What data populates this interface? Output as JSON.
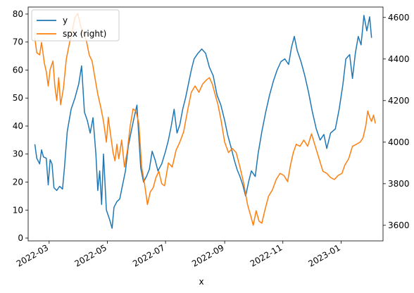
{
  "chart_data": {
    "type": "line",
    "xlabel": "x",
    "legend_position": "top-left",
    "x_ticks": [
      "2022-03",
      "2022-05",
      "2022-07",
      "2022-09",
      "2022-11",
      "2023-01"
    ],
    "x_range": [
      "2022-02-07",
      "2023-02-14"
    ],
    "y_left_ticks": [
      0,
      10,
      20,
      30,
      40,
      50,
      60,
      70,
      80
    ],
    "y_left_range": [
      -1,
      82.5
    ],
    "y_right_ticks": [
      3600,
      3800,
      4000,
      4200,
      4400,
      4600
    ],
    "y_right_range": [
      3525,
      4650
    ],
    "series": [
      {
        "name": "y",
        "axis": "left",
        "color": "#1f77b4",
        "points": [
          [
            "2022-02-14",
            33.5
          ],
          [
            "2022-02-16",
            28.5
          ],
          [
            "2022-02-19",
            26.5
          ],
          [
            "2022-02-21",
            31.5
          ],
          [
            "2022-02-23",
            29
          ],
          [
            "2022-02-26",
            28.5
          ],
          [
            "2022-02-28",
            19
          ],
          [
            "2022-03-02",
            28
          ],
          [
            "2022-03-04",
            26.5
          ],
          [
            "2022-03-06",
            18
          ],
          [
            "2022-03-09",
            17
          ],
          [
            "2022-03-12",
            18.5
          ],
          [
            "2022-03-15",
            17.5
          ],
          [
            "2022-03-17",
            25
          ],
          [
            "2022-03-20",
            38
          ],
          [
            "2022-03-24",
            46
          ],
          [
            "2022-03-28",
            50
          ],
          [
            "2022-04-01",
            55
          ],
          [
            "2022-04-04",
            61.5
          ],
          [
            "2022-04-07",
            45
          ],
          [
            "2022-04-10",
            42
          ],
          [
            "2022-04-13",
            37.5
          ],
          [
            "2022-04-16",
            43
          ],
          [
            "2022-04-19",
            30
          ],
          [
            "2022-04-21",
            17
          ],
          [
            "2022-04-23",
            24
          ],
          [
            "2022-04-25",
            12
          ],
          [
            "2022-04-27",
            30
          ],
          [
            "2022-04-30",
            10
          ],
          [
            "2022-05-03",
            7
          ],
          [
            "2022-05-06",
            3.5
          ],
          [
            "2022-05-08",
            11
          ],
          [
            "2022-05-11",
            13
          ],
          [
            "2022-05-14",
            14
          ],
          [
            "2022-05-17",
            19
          ],
          [
            "2022-05-20",
            24
          ],
          [
            "2022-05-23",
            33
          ],
          [
            "2022-05-26",
            38
          ],
          [
            "2022-05-29",
            43
          ],
          [
            "2022-06-01",
            47.5
          ],
          [
            "2022-06-03",
            36
          ],
          [
            "2022-06-05",
            25
          ],
          [
            "2022-06-08",
            20
          ],
          [
            "2022-06-11",
            22
          ],
          [
            "2022-06-14",
            24.5
          ],
          [
            "2022-06-17",
            31
          ],
          [
            "2022-06-20",
            28
          ],
          [
            "2022-06-23",
            24
          ],
          [
            "2022-06-27",
            26.5
          ],
          [
            "2022-07-01",
            31
          ],
          [
            "2022-07-04",
            35
          ],
          [
            "2022-07-07",
            40
          ],
          [
            "2022-07-10",
            46
          ],
          [
            "2022-07-13",
            37.5
          ],
          [
            "2022-07-16",
            40.5
          ],
          [
            "2022-07-19",
            46
          ],
          [
            "2022-07-22",
            50
          ],
          [
            "2022-07-25",
            55
          ],
          [
            "2022-07-28",
            60
          ],
          [
            "2022-07-31",
            64
          ],
          [
            "2022-08-04",
            66
          ],
          [
            "2022-08-08",
            67.5
          ],
          [
            "2022-08-12",
            66
          ],
          [
            "2022-08-16",
            61
          ],
          [
            "2022-08-20",
            58
          ],
          [
            "2022-08-24",
            51
          ],
          [
            "2022-08-28",
            47.5
          ],
          [
            "2022-09-01",
            42
          ],
          [
            "2022-09-04",
            37
          ],
          [
            "2022-09-08",
            32
          ],
          [
            "2022-09-11",
            28
          ],
          [
            "2022-09-14",
            24.5
          ],
          [
            "2022-09-17",
            22
          ],
          [
            "2022-09-20",
            19
          ],
          [
            "2022-09-23",
            15
          ],
          [
            "2022-09-26",
            20
          ],
          [
            "2022-09-29",
            24
          ],
          [
            "2022-10-03",
            22
          ],
          [
            "2022-10-06",
            30
          ],
          [
            "2022-10-10",
            38
          ],
          [
            "2022-10-14",
            45
          ],
          [
            "2022-10-18",
            51
          ],
          [
            "2022-10-22",
            56
          ],
          [
            "2022-10-26",
            60
          ],
          [
            "2022-10-30",
            63
          ],
          [
            "2022-11-03",
            64
          ],
          [
            "2022-11-07",
            62
          ],
          [
            "2022-11-10",
            68
          ],
          [
            "2022-11-13",
            72
          ],
          [
            "2022-11-16",
            67
          ],
          [
            "2022-11-20",
            63
          ],
          [
            "2022-11-24",
            58
          ],
          [
            "2022-11-28",
            52
          ],
          [
            "2022-12-02",
            45
          ],
          [
            "2022-12-06",
            39
          ],
          [
            "2022-12-10",
            35
          ],
          [
            "2022-12-14",
            37
          ],
          [
            "2022-12-17",
            32
          ],
          [
            "2022-12-21",
            37.5
          ],
          [
            "2022-12-26",
            39
          ],
          [
            "2022-12-30",
            46
          ],
          [
            "2023-01-03",
            55
          ],
          [
            "2023-01-06",
            64
          ],
          [
            "2023-01-10",
            65.5
          ],
          [
            "2023-01-13",
            57
          ],
          [
            "2023-01-16",
            66
          ],
          [
            "2023-01-19",
            72
          ],
          [
            "2023-01-22",
            69
          ],
          [
            "2023-01-25",
            79.5
          ],
          [
            "2023-01-28",
            74
          ],
          [
            "2023-01-31",
            79
          ],
          [
            "2023-02-02",
            71.5
          ]
        ]
      },
      {
        "name": "spx (right)",
        "axis": "right",
        "color": "#ff7f0e",
        "points": [
          [
            "2022-02-14",
            4500
          ],
          [
            "2022-02-16",
            4430
          ],
          [
            "2022-02-19",
            4420
          ],
          [
            "2022-02-21",
            4480
          ],
          [
            "2022-02-24",
            4380
          ],
          [
            "2022-02-26",
            4340
          ],
          [
            "2022-02-28",
            4270
          ],
          [
            "2022-03-02",
            4350
          ],
          [
            "2022-03-05",
            4390
          ],
          [
            "2022-03-07",
            4270
          ],
          [
            "2022-03-09",
            4200
          ],
          [
            "2022-03-11",
            4310
          ],
          [
            "2022-03-13",
            4180
          ],
          [
            "2022-03-16",
            4260
          ],
          [
            "2022-03-19",
            4400
          ],
          [
            "2022-03-22",
            4470
          ],
          [
            "2022-03-25",
            4530
          ],
          [
            "2022-03-28",
            4600
          ],
          [
            "2022-03-31",
            4620
          ],
          [
            "2022-04-03",
            4560
          ],
          [
            "2022-04-06",
            4520
          ],
          [
            "2022-04-09",
            4490
          ],
          [
            "2022-04-12",
            4420
          ],
          [
            "2022-04-15",
            4390
          ],
          [
            "2022-04-18",
            4310
          ],
          [
            "2022-04-21",
            4230
          ],
          [
            "2022-04-24",
            4170
          ],
          [
            "2022-04-27",
            4100
          ],
          [
            "2022-04-30",
            4000
          ],
          [
            "2022-05-02",
            4120
          ],
          [
            "2022-05-04",
            4050
          ],
          [
            "2022-05-07",
            3950
          ],
          [
            "2022-05-09",
            3910
          ],
          [
            "2022-05-11",
            3990
          ],
          [
            "2022-05-13",
            3920
          ],
          [
            "2022-05-16",
            4010
          ],
          [
            "2022-05-19",
            3880
          ],
          [
            "2022-05-22",
            3960
          ],
          [
            "2022-05-25",
            4080
          ],
          [
            "2022-05-28",
            4160
          ],
          [
            "2022-05-31",
            4150
          ],
          [
            "2022-06-03",
            4090
          ],
          [
            "2022-06-06",
            3880
          ],
          [
            "2022-06-09",
            3800
          ],
          [
            "2022-06-12",
            3700
          ],
          [
            "2022-06-15",
            3760
          ],
          [
            "2022-06-18",
            3780
          ],
          [
            "2022-06-21",
            3830
          ],
          [
            "2022-06-24",
            3860
          ],
          [
            "2022-06-27",
            3800
          ],
          [
            "2022-06-30",
            3790
          ],
          [
            "2022-07-04",
            3900
          ],
          [
            "2022-07-08",
            3880
          ],
          [
            "2022-07-12",
            3960
          ],
          [
            "2022-07-16",
            4000
          ],
          [
            "2022-07-20",
            4050
          ],
          [
            "2022-07-24",
            4150
          ],
          [
            "2022-07-28",
            4240
          ],
          [
            "2022-08-01",
            4270
          ],
          [
            "2022-08-05",
            4240
          ],
          [
            "2022-08-09",
            4280
          ],
          [
            "2022-08-13",
            4300
          ],
          [
            "2022-08-16",
            4310
          ],
          [
            "2022-08-19",
            4280
          ],
          [
            "2022-08-22",
            4230
          ],
          [
            "2022-08-25",
            4180
          ],
          [
            "2022-08-28",
            4110
          ],
          [
            "2022-09-01",
            4000
          ],
          [
            "2022-09-05",
            3950
          ],
          [
            "2022-09-09",
            3970
          ],
          [
            "2022-09-13",
            3950
          ],
          [
            "2022-09-17",
            3880
          ],
          [
            "2022-09-21",
            3800
          ],
          [
            "2022-09-25",
            3700
          ],
          [
            "2022-09-28",
            3650
          ],
          [
            "2022-10-01",
            3600
          ],
          [
            "2022-10-04",
            3670
          ],
          [
            "2022-10-07",
            3620
          ],
          [
            "2022-10-10",
            3610
          ],
          [
            "2022-10-13",
            3670
          ],
          [
            "2022-10-17",
            3740
          ],
          [
            "2022-10-21",
            3770
          ],
          [
            "2022-10-25",
            3820
          ],
          [
            "2022-10-29",
            3850
          ],
          [
            "2022-11-02",
            3840
          ],
          [
            "2022-11-06",
            3810
          ],
          [
            "2022-11-09",
            3890
          ],
          [
            "2022-11-12",
            3950
          ],
          [
            "2022-11-15",
            3990
          ],
          [
            "2022-11-19",
            3980
          ],
          [
            "2022-11-23",
            4010
          ],
          [
            "2022-11-27",
            3980
          ],
          [
            "2022-12-01",
            4040
          ],
          [
            "2022-12-05",
            3980
          ],
          [
            "2022-12-09",
            3920
          ],
          [
            "2022-12-13",
            3860
          ],
          [
            "2022-12-17",
            3850
          ],
          [
            "2022-12-21",
            3830
          ],
          [
            "2022-12-25",
            3820
          ],
          [
            "2022-12-29",
            3840
          ],
          [
            "2023-01-02",
            3850
          ],
          [
            "2023-01-05",
            3890
          ],
          [
            "2023-01-09",
            3920
          ],
          [
            "2023-01-13",
            3980
          ],
          [
            "2023-01-17",
            3990
          ],
          [
            "2023-01-21",
            4000
          ],
          [
            "2023-01-24",
            4020
          ],
          [
            "2023-01-27",
            4080
          ],
          [
            "2023-01-29",
            4150
          ],
          [
            "2023-01-31",
            4120
          ],
          [
            "2023-02-02",
            4100
          ],
          [
            "2023-02-04",
            4130
          ],
          [
            "2023-02-06",
            4090
          ]
        ]
      }
    ]
  }
}
